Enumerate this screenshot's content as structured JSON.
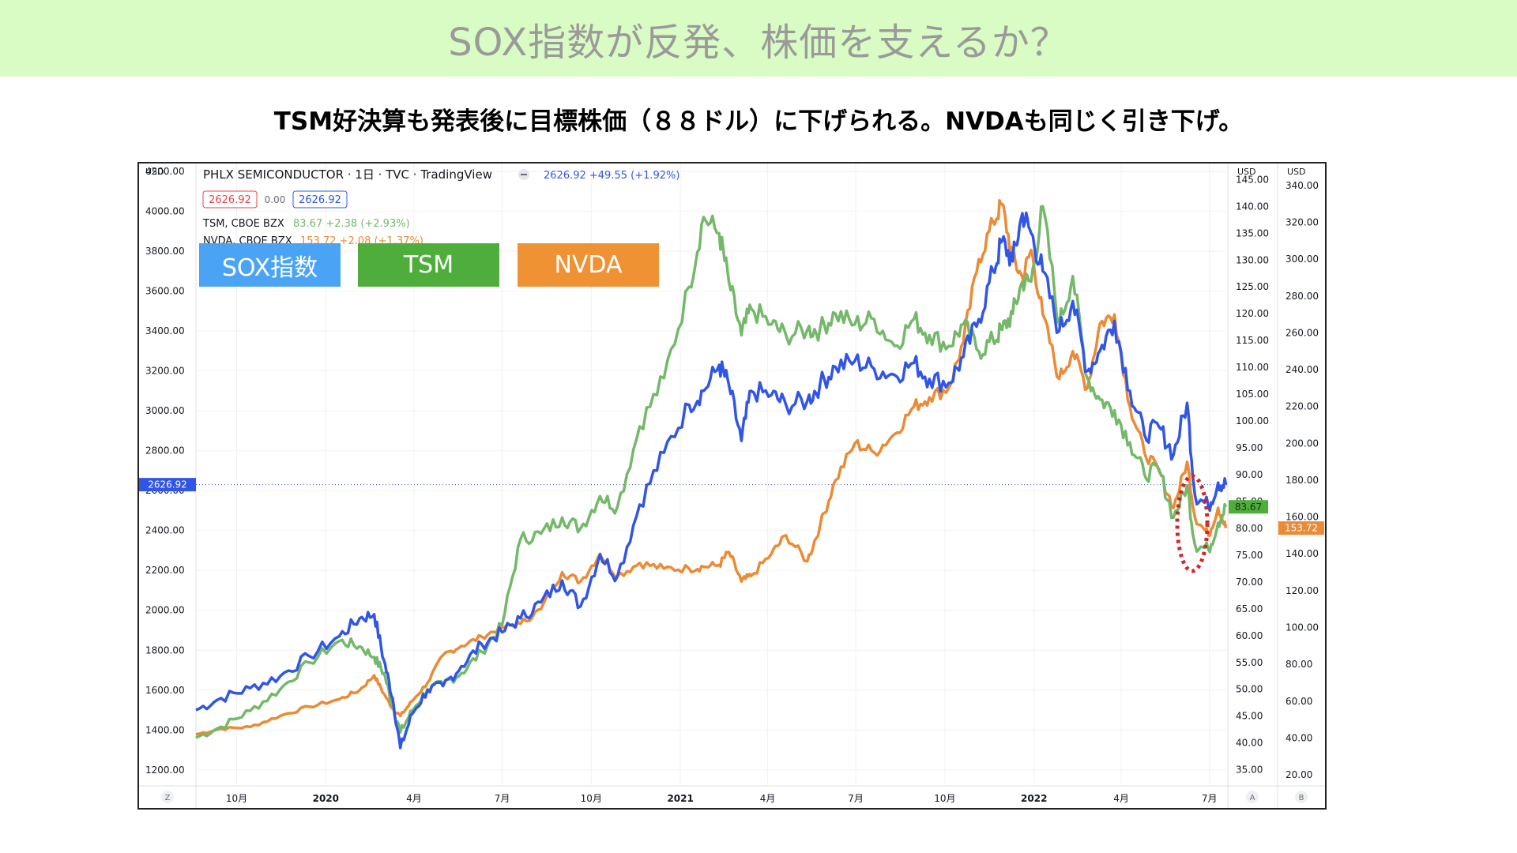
{
  "banner": {
    "title": "SOX指数が反発、株価を支えるか？",
    "bg": "#d9fbc4"
  },
  "subtitle": "TSM好決算も発表後に目標株価（８８ドル）に下げられる。NVDAも同じく引き下げ。",
  "header": {
    "symbol_line": "PHLX SEMICONDUCTOR · 1日 · TVC · TradingView",
    "quote": "2626.92 +49.55 (+1.92%)",
    "bid": "2626.92",
    "spread": "0.00",
    "ask": "2626.92",
    "tsm_name": "TSM, CBOE BZX",
    "tsm_quote": "83.67 +2.38 (+2.93%)",
    "nvda_name": "NVDA, CBOE BZX",
    "nvda_quote": "153.72 +2.08 (+1.37%)"
  },
  "axis_labels": {
    "currency_left": "USD",
    "currency_a": "USD",
    "currency_b": "USD",
    "corner_left": "Z",
    "corner_a": "A",
    "corner_b": "B"
  },
  "price_tags": {
    "sox": "2626.92",
    "tsm": "83.67",
    "nvda": "153.72"
  },
  "legend": [
    {
      "label": "SOX指数",
      "color": "#4aa3f5"
    },
    {
      "label": "TSM",
      "color": "#4fae3b"
    },
    {
      "label": "NVDA",
      "color": "#ef9233"
    }
  ],
  "colors": {
    "sox": "#3155e6",
    "tsm": "#74b86a",
    "nvda": "#ec8a35",
    "highlight": "#d42424"
  },
  "chart_data": {
    "type": "line",
    "x_ticks": [
      "10月",
      "2020",
      "4月",
      "7月",
      "10月",
      "2021",
      "4月",
      "7月",
      "10月",
      "2022",
      "4月",
      "7月"
    ],
    "x_tick_dates": [
      "2019-10-01",
      "2020-01-01",
      "2020-04-01",
      "2020-07-01",
      "2020-10-01",
      "2021-01-01",
      "2021-04-01",
      "2021-07-01",
      "2021-10-01",
      "2022-01-01",
      "2022-04-01",
      "2022-07-01"
    ],
    "x_range": [
      "2019-08-20",
      "2022-07-20"
    ],
    "y_left": {
      "ticks": [
        1200,
        1400,
        1600,
        1800,
        2000,
        2200,
        2400,
        2600,
        2800,
        3000,
        3200,
        3400,
        3600,
        3800,
        4000,
        4200
      ],
      "range": [
        1120,
        4240
      ]
    },
    "y_a": {
      "ticks": [
        35,
        40,
        45,
        50,
        55,
        60,
        65,
        70,
        75,
        80,
        85,
        90,
        95,
        100,
        105,
        110,
        115,
        120,
        125,
        130,
        135,
        140,
        145
      ],
      "range": [
        32,
        148
      ]
    },
    "y_b": {
      "ticks": [
        20,
        40,
        60,
        80,
        100,
        120,
        140,
        160,
        180,
        200,
        220,
        240,
        260,
        280,
        300,
        320,
        340
      ],
      "range": [
        14,
        352
      ]
    },
    "series": [
      {
        "name": "SOX指数",
        "axis": "left",
        "x": [
          "2019-08-20",
          "2019-09-15",
          "2019-10-15",
          "2019-11-15",
          "2019-12-15",
          "2020-01-15",
          "2020-02-05",
          "2020-02-20",
          "2020-03-01",
          "2020-03-10",
          "2020-03-18",
          "2020-03-30",
          "2020-04-15",
          "2020-05-01",
          "2020-05-20",
          "2020-06-10",
          "2020-07-01",
          "2020-07-20",
          "2020-08-10",
          "2020-09-01",
          "2020-09-20",
          "2020-10-10",
          "2020-10-28",
          "2020-11-20",
          "2020-12-15",
          "2021-01-10",
          "2021-01-25",
          "2021-02-10",
          "2021-02-20",
          "2021-03-05",
          "2021-03-15",
          "2021-04-05",
          "2021-04-20",
          "2021-05-12",
          "2021-05-25",
          "2021-06-10",
          "2021-06-30",
          "2021-07-20",
          "2021-08-10",
          "2021-08-30",
          "2021-09-15",
          "2021-10-05",
          "2021-10-20",
          "2021-11-05",
          "2021-11-20",
          "2021-11-29",
          "2021-12-10",
          "2021-12-20",
          "2021-12-29",
          "2022-01-10",
          "2022-01-27",
          "2022-02-10",
          "2022-02-25",
          "2022-03-10",
          "2022-03-25",
          "2022-04-10",
          "2022-04-25",
          "2022-05-10",
          "2022-05-25",
          "2022-06-08",
          "2022-06-16",
          "2022-06-30",
          "2022-07-10",
          "2022-07-18"
        ],
        "values": [
          1500,
          1560,
          1610,
          1670,
          1770,
          1870,
          1960,
          1980,
          1750,
          1560,
          1310,
          1480,
          1600,
          1620,
          1720,
          1830,
          1890,
          1960,
          2040,
          2150,
          2020,
          2280,
          2170,
          2530,
          2790,
          3030,
          3100,
          3230,
          3130,
          2850,
          3100,
          3080,
          3030,
          3050,
          3130,
          3220,
          3250,
          3210,
          3180,
          3240,
          3160,
          3140,
          3270,
          3460,
          3700,
          3850,
          3750,
          3990,
          3890,
          3700,
          3400,
          3550,
          3200,
          3300,
          3450,
          3100,
          2880,
          2920,
          2780,
          3040,
          2580,
          2520,
          2640,
          2630
        ]
      },
      {
        "name": "TSM",
        "axis": "a",
        "x": [
          "2019-08-20",
          "2019-09-15",
          "2019-10-15",
          "2019-11-15",
          "2019-12-15",
          "2020-01-15",
          "2020-02-05",
          "2020-02-20",
          "2020-03-01",
          "2020-03-10",
          "2020-03-18",
          "2020-03-30",
          "2020-04-15",
          "2020-05-01",
          "2020-05-20",
          "2020-06-10",
          "2020-07-01",
          "2020-07-20",
          "2020-08-10",
          "2020-09-01",
          "2020-09-20",
          "2020-10-10",
          "2020-10-28",
          "2020-11-20",
          "2020-12-15",
          "2021-01-10",
          "2021-01-25",
          "2021-02-10",
          "2021-02-20",
          "2021-03-05",
          "2021-03-15",
          "2021-04-05",
          "2021-04-20",
          "2021-05-12",
          "2021-05-25",
          "2021-06-10",
          "2021-06-30",
          "2021-07-20",
          "2021-08-10",
          "2021-08-30",
          "2021-09-15",
          "2021-10-05",
          "2021-10-20",
          "2021-11-05",
          "2021-11-20",
          "2021-11-29",
          "2021-12-10",
          "2021-12-20",
          "2021-12-29",
          "2022-01-10",
          "2022-01-27",
          "2022-02-10",
          "2022-02-25",
          "2022-03-10",
          "2022-03-25",
          "2022-04-10",
          "2022-04-25",
          "2022-05-10",
          "2022-05-25",
          "2022-06-08",
          "2022-06-16",
          "2022-06-30",
          "2022-07-10",
          "2022-07-18"
        ],
        "values": [
          41,
          43,
          46,
          50,
          55,
          59,
          58,
          56,
          53,
          47,
          42,
          46,
          50,
          51,
          53,
          57,
          62,
          78,
          79,
          82,
          80,
          86,
          84,
          99,
          108,
          125,
          138,
          135,
          126,
          116,
          121,
          118,
          116,
          117,
          117,
          120,
          118,
          119,
          114,
          119,
          116,
          114,
          118,
          113,
          115,
          117,
          120,
          126,
          126,
          140,
          118,
          127,
          108,
          104,
          102,
          96,
          90,
          91,
          82,
          88,
          77,
          76,
          81,
          84
        ]
      },
      {
        "name": "NVDA",
        "axis": "b",
        "x": [
          "2019-08-20",
          "2019-09-15",
          "2019-10-15",
          "2019-11-15",
          "2019-12-15",
          "2020-01-15",
          "2020-02-05",
          "2020-02-20",
          "2020-03-01",
          "2020-03-10",
          "2020-03-18",
          "2020-03-30",
          "2020-04-15",
          "2020-05-01",
          "2020-05-20",
          "2020-06-10",
          "2020-07-01",
          "2020-07-20",
          "2020-08-10",
          "2020-09-01",
          "2020-09-20",
          "2020-10-10",
          "2020-10-28",
          "2020-11-20",
          "2020-12-15",
          "2021-01-10",
          "2021-01-25",
          "2021-02-10",
          "2021-02-20",
          "2021-03-05",
          "2021-03-15",
          "2021-04-05",
          "2021-04-20",
          "2021-05-12",
          "2021-05-25",
          "2021-06-10",
          "2021-06-30",
          "2021-07-20",
          "2021-08-10",
          "2021-08-30",
          "2021-09-15",
          "2021-10-05",
          "2021-10-20",
          "2021-11-05",
          "2021-11-20",
          "2021-11-29",
          "2021-12-10",
          "2021-12-20",
          "2021-12-29",
          "2022-01-10",
          "2022-01-27",
          "2022-02-10",
          "2022-02-25",
          "2022-03-10",
          "2022-03-25",
          "2022-04-10",
          "2022-04-25",
          "2022-05-10",
          "2022-05-25",
          "2022-06-08",
          "2022-06-16",
          "2022-06-30",
          "2022-07-10",
          "2022-07-18"
        ],
        "values": [
          42,
          45,
          46,
          52,
          57,
          61,
          66,
          74,
          64,
          56,
          52,
          60,
          70,
          85,
          90,
          95,
          100,
          102,
          110,
          130,
          125,
          140,
          128,
          135,
          132,
          132,
          133,
          134,
          141,
          125,
          128,
          140,
          150,
          136,
          155,
          180,
          200,
          195,
          205,
          220,
          225,
          230,
          255,
          300,
          320,
          330,
          300,
          290,
          305,
          270,
          235,
          250,
          230,
          265,
          270,
          220,
          195,
          185,
          165,
          190,
          160,
          150,
          165,
          154
        ]
      }
    ]
  }
}
